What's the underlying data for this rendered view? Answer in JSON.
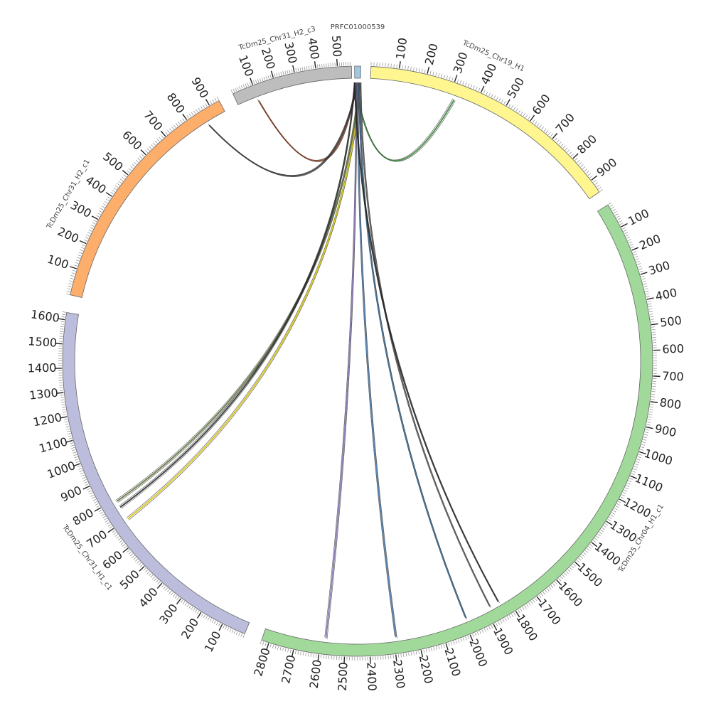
{
  "segments": [
    {
      "id": "PRFC01000539",
      "label": "PRFC01000539",
      "color": "#9ecae1",
      "tick_labels": []
    },
    {
      "id": "Chr19_H1",
      "label": "TcDm25_Chr19_H1",
      "color": "#fff68f",
      "tick_labels": [
        "100",
        "200",
        "300",
        "400",
        "500",
        "600",
        "700",
        "800",
        "900"
      ]
    },
    {
      "id": "Chr04_H1_c1",
      "label": "TcDm25_Chr04_H1_c1",
      "color": "#a1d99b",
      "tick_labels": [
        "100",
        "200",
        "300",
        "400",
        "500",
        "600",
        "700",
        "800",
        "900",
        "1000",
        "1100",
        "1200",
        "1300",
        "1400",
        "1500",
        "1600",
        "1700",
        "1800",
        "1900",
        "2000",
        "2100",
        "2200",
        "2300",
        "2400",
        "2500",
        "2600",
        "2700",
        "2800"
      ]
    },
    {
      "id": "Chr31_H1_c1",
      "label": "TcDm25_Chr31_H1_c1",
      "color": "#bcbddc",
      "tick_labels": [
        "100",
        "200",
        "300",
        "400",
        "500",
        "600",
        "700",
        "800",
        "900",
        "1000",
        "1100",
        "1200",
        "1300",
        "1400",
        "1500",
        "1600"
      ]
    },
    {
      "id": "Chr31_H2_c1",
      "label": "TcDm25_Chr31_H2_c1",
      "color": "#fdae6b",
      "tick_labels": [
        "100",
        "200",
        "300",
        "400",
        "500",
        "600",
        "700",
        "800",
        "900"
      ]
    },
    {
      "id": "Chr31_H2_c3",
      "label": "TcDm25_Chr31_H2_c3",
      "color": "#bdbdbd",
      "tick_labels": [
        "100",
        "200",
        "300",
        "400",
        "500"
      ]
    }
  ],
  "links": [
    {
      "target": "Chr19_H1",
      "target_position": 320,
      "color": "#2f7f2f"
    },
    {
      "target": "Chr31_H2_c3",
      "target_position": 100,
      "color": "#8c3b1a"
    },
    {
      "target": "Chr31_H2_c1",
      "target_position": 860,
      "color": "#333333"
    },
    {
      "target": "Chr31_H1_c1",
      "target_position": 790,
      "color": "#556b2f"
    },
    {
      "target": "Chr31_H1_c1",
      "target_position": 700,
      "color": "#d4c000"
    },
    {
      "target": "Chr31_H1_c1",
      "target_position": 760,
      "color": "#222222"
    },
    {
      "target": "Chr04_H1_c1",
      "target_position": 2580,
      "color": "#7b68a8"
    },
    {
      "target": "Chr04_H1_c1",
      "target_position": 2290,
      "color": "#3f6fa0"
    },
    {
      "target": "Chr04_H1_c1",
      "target_position": 1990,
      "color": "#2b5f8a"
    },
    {
      "target": "Chr04_H1_c1",
      "target_position": 1880,
      "color": "#555555"
    },
    {
      "target": "Chr04_H1_c1",
      "target_position": 1840,
      "color": "#222222"
    }
  ]
}
